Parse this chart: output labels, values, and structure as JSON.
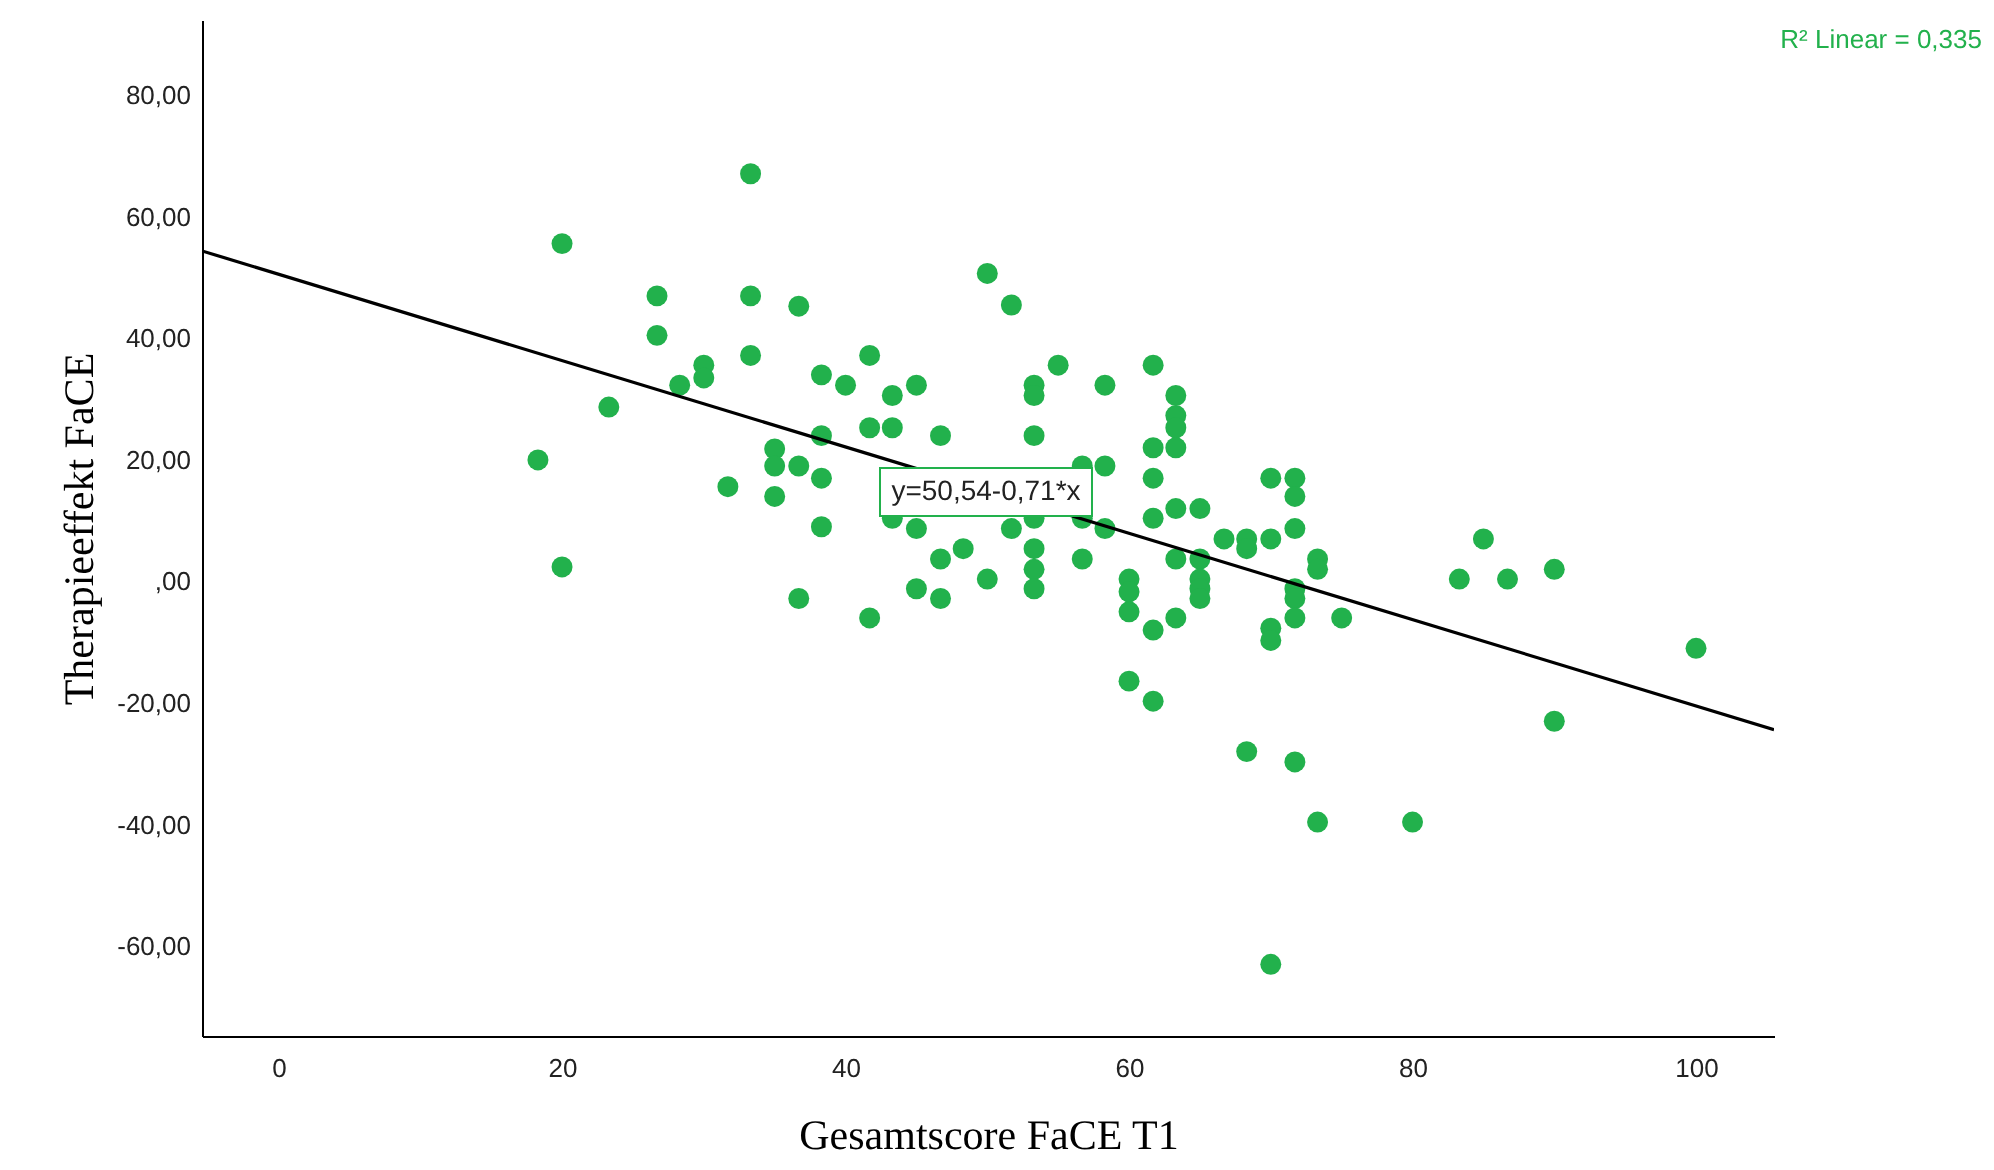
{
  "chart_data": {
    "type": "scatter",
    "xlabel": "Gesamtscore FaCE T1",
    "ylabel": "Therapieeffekt FaCE",
    "xlim": [
      -5.4,
      105.5
    ],
    "ylim": [
      -74.8,
      92.4
    ],
    "xticks": [
      0,
      20,
      40,
      60,
      80,
      100
    ],
    "yticks": [
      {
        "value": -60,
        "label": "-60,00"
      },
      {
        "value": -40,
        "label": "-40,00"
      },
      {
        "value": -20,
        "label": "-20,00"
      },
      {
        "value": 0,
        "label": ",00"
      },
      {
        "value": 20,
        "label": "20,00"
      },
      {
        "value": 40,
        "label": "40,00"
      },
      {
        "value": 60,
        "label": "60,00"
      },
      {
        "value": 80,
        "label": "80,00"
      }
    ],
    "grid": false,
    "annotations": [
      "R² Linear = 0,335",
      "y=50,54-0,71*x"
    ],
    "series": [
      {
        "type": "scatter",
        "color": "#22b14c",
        "marker": "circle",
        "x": [
          18.3,
          20,
          20,
          23.3,
          26.7,
          26.7,
          28.3,
          30,
          30,
          31.7,
          33.3,
          33.3,
          33.3,
          35,
          35,
          35,
          36.7,
          36.7,
          36.7,
          38.3,
          38.3,
          38.3,
          38.3,
          40,
          41.7,
          41.7,
          41.7,
          43.3,
          43.3,
          43.3,
          45,
          45,
          45,
          46.7,
          46.7,
          46.7,
          48.3,
          50,
          50,
          51.7,
          51.7,
          53.3,
          53.3,
          53.3,
          53.3,
          53.3,
          53.3,
          53.3,
          55,
          56.7,
          56.7,
          56.7,
          58.3,
          58.3,
          58.3,
          60,
          60,
          60,
          60,
          61.7,
          61.7,
          61.7,
          61.7,
          61.7,
          61.7,
          63.3,
          63.3,
          63.3,
          63.3,
          63.3,
          63.3,
          63.3,
          65,
          65,
          65,
          65,
          65,
          66.7,
          68.3,
          68.3,
          68.3,
          70,
          70,
          70,
          70,
          70,
          71.7,
          71.7,
          71.7,
          71.7,
          71.7,
          71.7,
          71.7,
          73.3,
          73.3,
          73.3,
          75,
          80,
          83.3,
          85,
          86.7,
          90,
          90,
          100
        ],
        "values": [
          20,
          55.6,
          2.4,
          28.7,
          47,
          40.5,
          32.3,
          35.6,
          33.5,
          15.6,
          67.1,
          47,
          37.2,
          21.8,
          19,
          14,
          45.3,
          19,
          -2.8,
          34,
          24,
          17,
          9,
          32.3,
          37.2,
          25.3,
          -6,
          30.6,
          25.3,
          10.4,
          32.3,
          8.7,
          -1.2,
          24,
          3.7,
          -2.8,
          5.4,
          50.7,
          0.4,
          45.5,
          8.7,
          32.3,
          30.6,
          24,
          10.4,
          5.4,
          2,
          -1.2,
          35.6,
          19,
          10.4,
          3.7,
          32.3,
          19,
          8.7,
          0.4,
          -1.7,
          -5,
          -16.4,
          35.6,
          22,
          17,
          10.4,
          -8,
          -19.7,
          30.6,
          27.3,
          25.3,
          22,
          12,
          3.7,
          -6,
          12,
          3.7,
          0.4,
          -1.2,
          -2.8,
          7,
          7,
          5.4,
          -28,
          17,
          7,
          -7.7,
          -9.7,
          -63,
          17,
          14,
          8.7,
          -1.2,
          -2.8,
          -6,
          -29.7,
          3.7,
          2,
          -39.6,
          -6,
          -39.6,
          0.4,
          7,
          0.4,
          2,
          -23,
          -11
        ]
      },
      {
        "type": "line",
        "color": "#000000",
        "line_style": "solid",
        "x": [
          -5.4,
          105.5
        ],
        "values": [
          54.4,
          -24.4
        ]
      }
    ]
  }
}
